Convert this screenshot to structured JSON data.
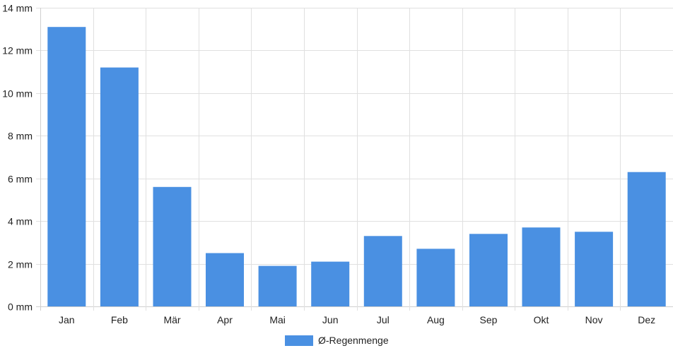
{
  "chart_data": {
    "type": "bar",
    "categories": [
      "Jan",
      "Feb",
      "Mär",
      "Apr",
      "Mai",
      "Jun",
      "Jul",
      "Aug",
      "Sep",
      "Okt",
      "Nov",
      "Dez"
    ],
    "series": [
      {
        "name": "Ø-Regenmenge",
        "values": [
          13.1,
          11.2,
          5.6,
          2.5,
          1.9,
          2.1,
          3.3,
          2.7,
          3.4,
          3.7,
          3.5,
          6.3
        ],
        "color": "#4a90e2"
      }
    ],
    "y_ticks": [
      "0 mm",
      "2 mm",
      "4 mm",
      "6 mm",
      "8 mm",
      "10 mm",
      "12 mm",
      "14 mm"
    ],
    "y_unit": "mm",
    "ylim": [
      0,
      14
    ],
    "grid": true,
    "legend_position": "bottom-center",
    "colors": {
      "grid": "#e0e0e0",
      "axis": "#cfcfcf",
      "text": "#222222"
    }
  }
}
